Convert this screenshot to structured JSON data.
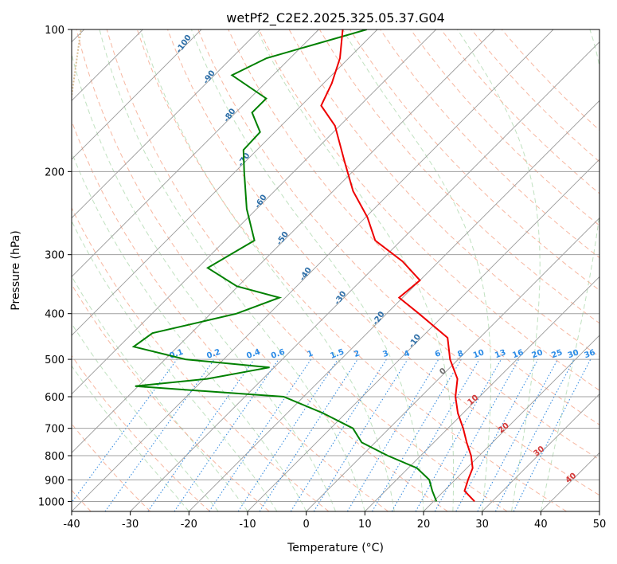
{
  "chart_data": {
    "type": "skew-t",
    "title": "wetPf2_C2E2.2025.325.05.37.G04",
    "xlabel": "Temperature (°C)",
    "ylabel": "Pressure (hPa)",
    "xlim": [
      -40,
      50
    ],
    "ylim": [
      1050,
      100
    ],
    "x_ticks": [
      -40,
      -30,
      -20,
      -10,
      0,
      10,
      20,
      30,
      40,
      50
    ],
    "y_ticks": [
      1000,
      900,
      800,
      700,
      600,
      500,
      400,
      300,
      200,
      100
    ],
    "skew_deg": 45,
    "temperature": {
      "name": "Temperature",
      "color": "#ee0000",
      "points": [
        {
          "p": 1000,
          "t": 27
        },
        {
          "p": 950,
          "t": 23.5
        },
        {
          "p": 900,
          "t": 22.2
        },
        {
          "p": 850,
          "t": 21
        },
        {
          "p": 800,
          "t": 18.6
        },
        {
          "p": 750,
          "t": 15.6
        },
        {
          "p": 700,
          "t": 12.6
        },
        {
          "p": 650,
          "t": 9.1
        },
        {
          "p": 600,
          "t": 5.9
        },
        {
          "p": 550,
          "t": 3.2
        },
        {
          "p": 500,
          "t": -1.4
        },
        {
          "p": 450,
          "t": -5.5
        },
        {
          "p": 400,
          "t": -14.5
        },
        {
          "p": 370,
          "t": -20.6
        },
        {
          "p": 340,
          "t": -20
        },
        {
          "p": 310,
          "t": -26.2
        },
        {
          "p": 280,
          "t": -34.4
        },
        {
          "p": 250,
          "t": -39.7
        },
        {
          "p": 220,
          "t": -46.6
        },
        {
          "p": 190,
          "t": -53.2
        },
        {
          "p": 160,
          "t": -60.8
        },
        {
          "p": 145,
          "t": -66.6
        },
        {
          "p": 130,
          "t": -68.6
        },
        {
          "p": 115,
          "t": -71.5
        },
        {
          "p": 100,
          "t": -75.9
        }
      ]
    },
    "dewpoint": {
      "name": "Dewpoint",
      "color": "#008000",
      "points": [
        {
          "p": 1000,
          "t": 20.5
        },
        {
          "p": 950,
          "t": 18
        },
        {
          "p": 900,
          "t": 15.6
        },
        {
          "p": 850,
          "t": 11.5
        },
        {
          "p": 800,
          "t": 4.4
        },
        {
          "p": 750,
          "t": -2.3
        },
        {
          "p": 700,
          "t": -6.2
        },
        {
          "p": 650,
          "t": -13.9
        },
        {
          "p": 600,
          "t": -23.4
        },
        {
          "p": 570,
          "t": -50.5
        },
        {
          "p": 550,
          "t": -39.5
        },
        {
          "p": 520,
          "t": -30.8
        },
        {
          "p": 500,
          "t": -46.5
        },
        {
          "p": 470,
          "t": -57.5
        },
        {
          "p": 440,
          "t": -56.6
        },
        {
          "p": 400,
          "t": -45.6
        },
        {
          "p": 370,
          "t": -41
        },
        {
          "p": 350,
          "t": -50.2
        },
        {
          "p": 320,
          "t": -58.3
        },
        {
          "p": 280,
          "t": -55
        },
        {
          "p": 240,
          "t": -61.7
        },
        {
          "p": 200,
          "t": -68.5
        },
        {
          "p": 180,
          "t": -72.3
        },
        {
          "p": 165,
          "t": -72.5
        },
        {
          "p": 150,
          "t": -77.2
        },
        {
          "p": 140,
          "t": -77.2
        },
        {
          "p": 125,
          "t": -87
        },
        {
          "p": 115,
          "t": -84
        },
        {
          "p": 100,
          "t": -71.8
        }
      ]
    },
    "dry_adiabat_labels": [
      {
        "label": "-100",
        "t": -100,
        "p": 108
      },
      {
        "label": "-90",
        "t": -90,
        "p": 127
      },
      {
        "label": "-80",
        "t": -80,
        "p": 153
      },
      {
        "label": "-70",
        "t": -70,
        "p": 190
      },
      {
        "label": "-60",
        "t": -60,
        "p": 233
      },
      {
        "label": "-50",
        "t": -50,
        "p": 279
      },
      {
        "label": "-40",
        "t": -40,
        "p": 332
      },
      {
        "label": "-30",
        "t": -30,
        "p": 373
      },
      {
        "label": "-20",
        "t": -20,
        "p": 412
      },
      {
        "label": "-10",
        "t": -10,
        "p": 460
      }
    ],
    "isotherm_labels": [
      {
        "label": "0",
        "t": 0,
        "p": 535
      },
      {
        "label": "10",
        "t": 10,
        "p": 615
      },
      {
        "label": "20",
        "t": 20,
        "p": 705
      },
      {
        "label": "30",
        "t": 30,
        "p": 790
      },
      {
        "label": "40",
        "t": 40,
        "p": 900
      }
    ],
    "mixing_ratio_labels": [
      "0.1",
      "0.2",
      "0.4",
      "0.6",
      "1",
      "1.5",
      "2",
      "3",
      "4",
      "6",
      "8",
      "10",
      "13",
      "16",
      "20",
      "25",
      "30",
      "36"
    ]
  }
}
